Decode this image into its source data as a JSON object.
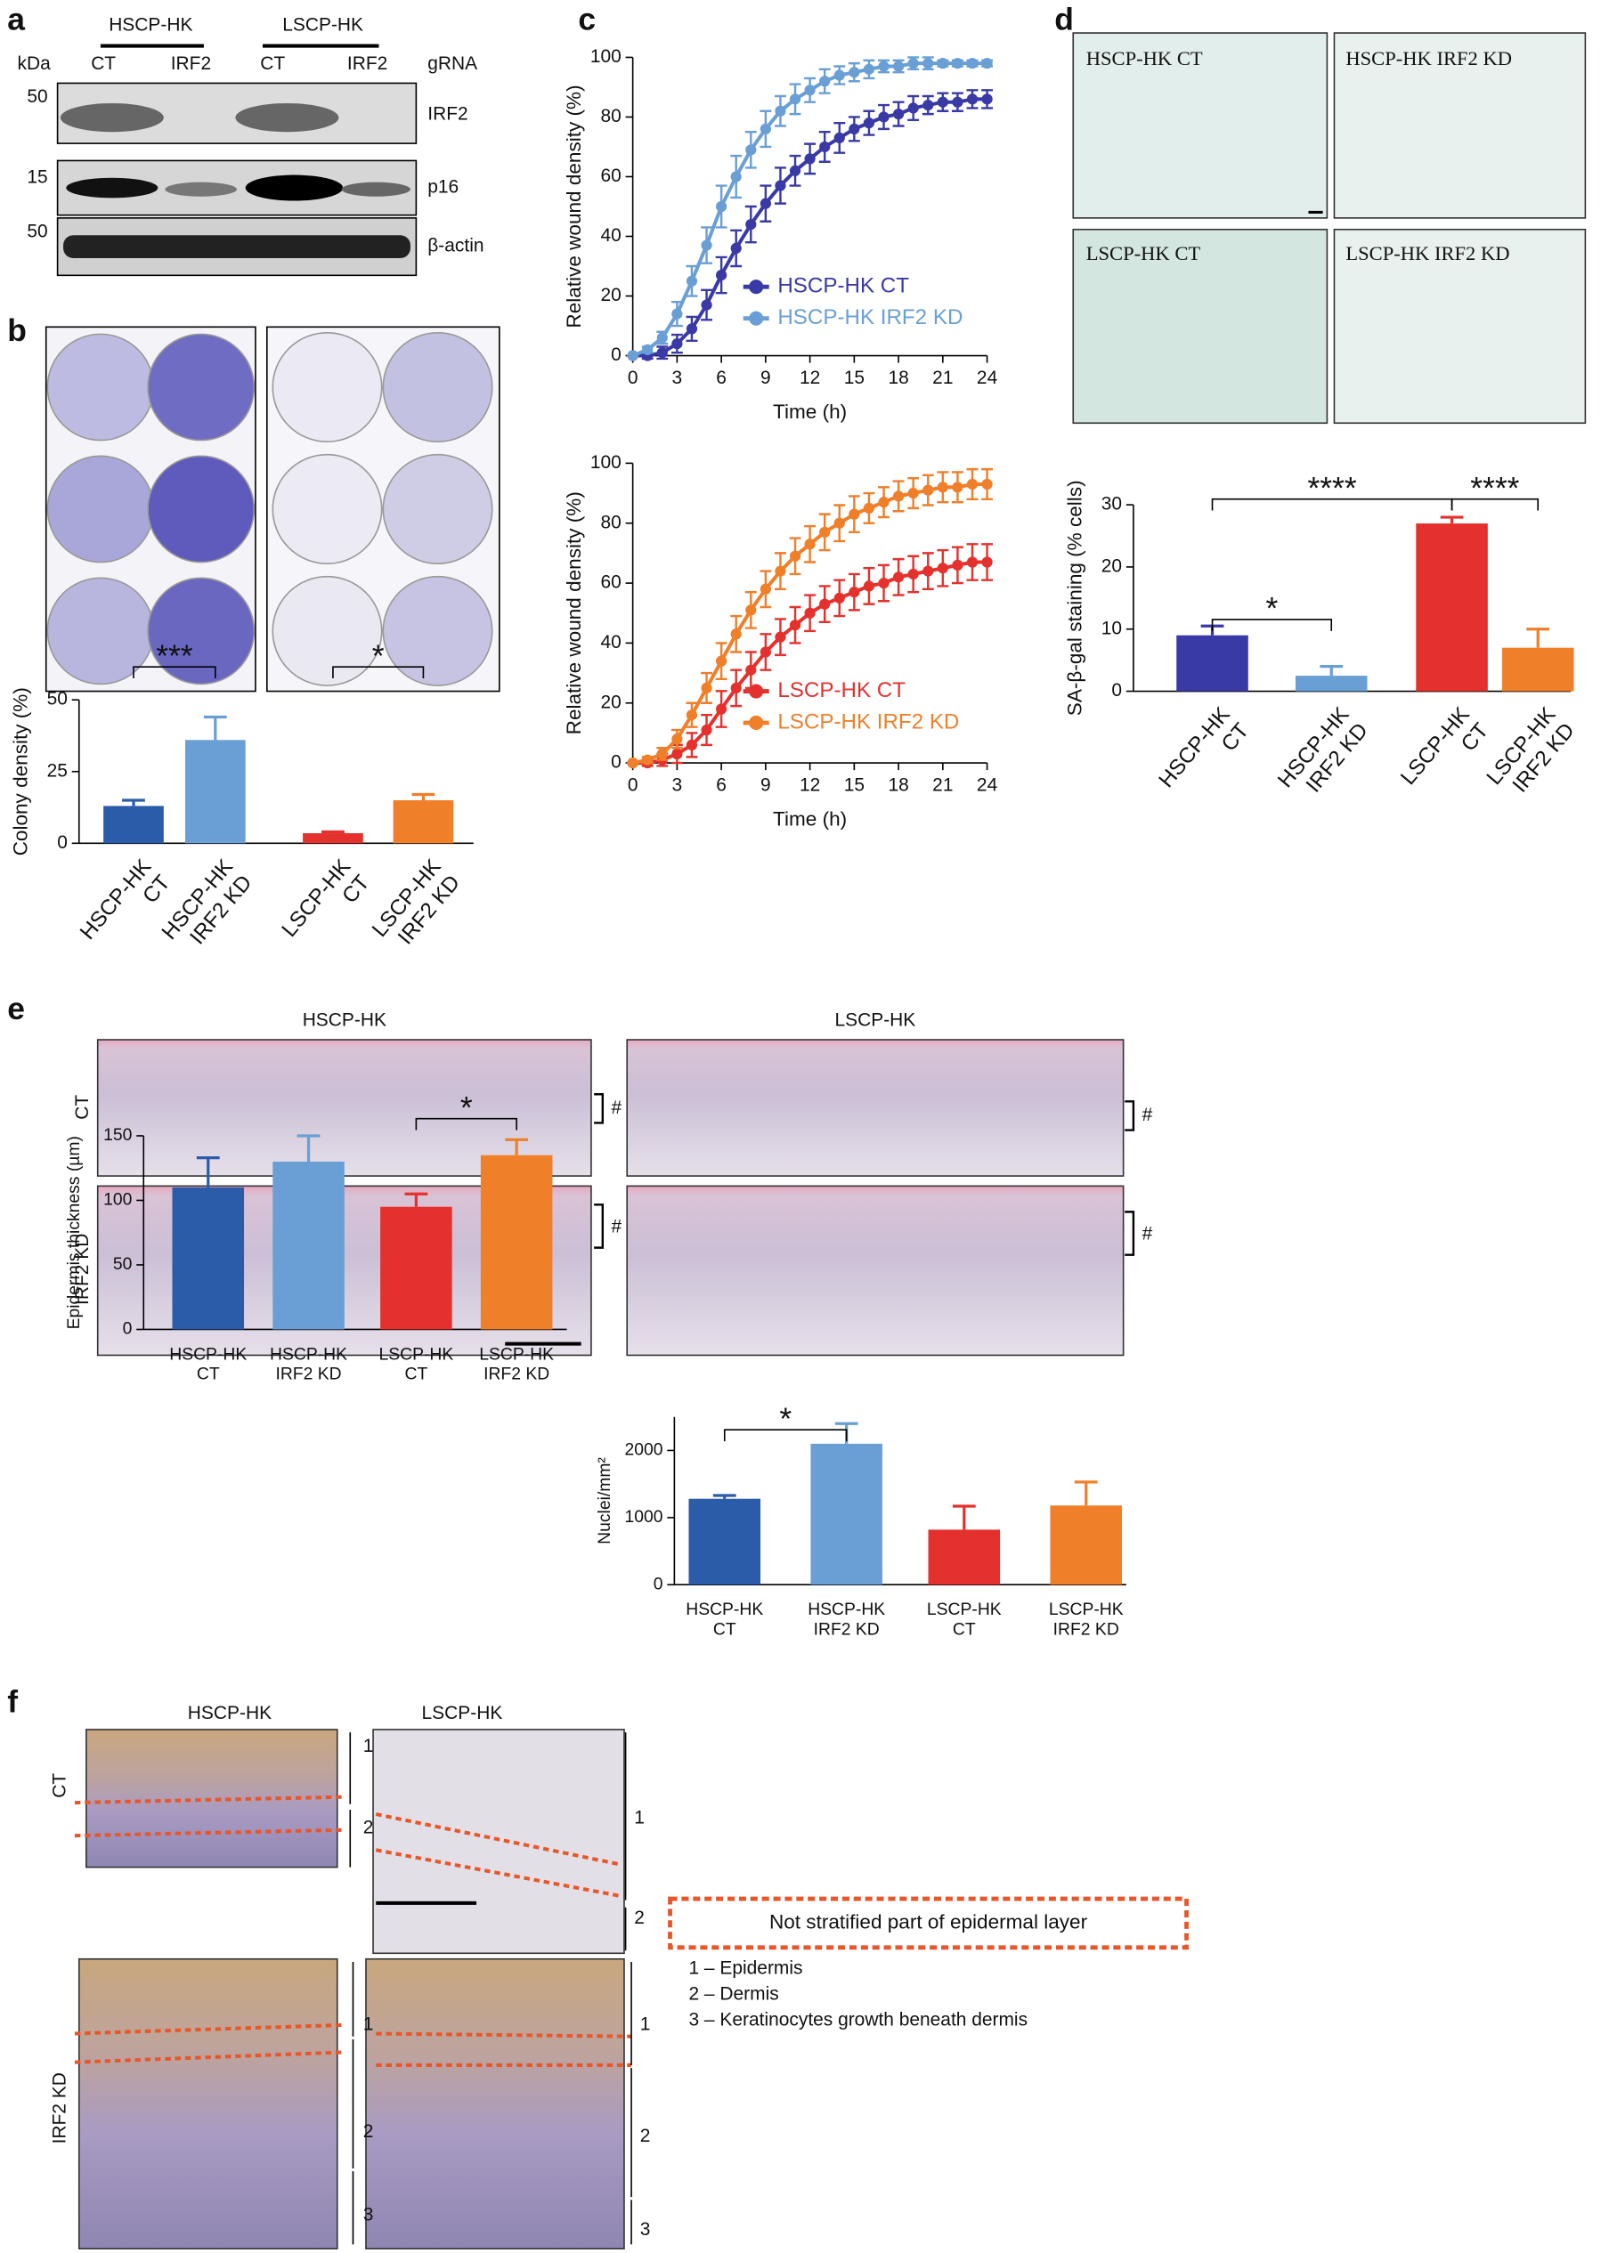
{
  "panel_labels": [
    "a",
    "b",
    "c",
    "d",
    "e",
    "f"
  ],
  "blot": {
    "kda": "kDa",
    "groups": [
      "HSCP-HK",
      "LSCP-HK"
    ],
    "lanes": [
      "CT",
      "IRF2",
      "CT",
      "IRF2"
    ],
    "grna": "gRNA",
    "markers": [
      "50",
      "15",
      "50"
    ],
    "rows": [
      "IRF2",
      "p16",
      "β-actin"
    ]
  },
  "micrographs_d": [
    "HSCP-HK CT",
    "HSCP-HK IRF2 KD",
    "LSCP-HK CT",
    "LSCP-HK IRF2 KD"
  ],
  "histology_e": {
    "columns": [
      "HSCP-HK",
      "LSCP-HK"
    ],
    "rows": [
      "CT",
      "IRF2 KD"
    ],
    "marks": [
      "#",
      "#",
      "#",
      "#"
    ]
  },
  "histology_f": {
    "columns": [
      "HSCP-HK",
      "LSCP-HK"
    ],
    "rows": [
      "CT",
      "IRF2 KD"
    ],
    "layer_numbers": [
      "1",
      "2",
      "1",
      "2",
      "1",
      "2",
      "3",
      "1",
      "2",
      "3"
    ],
    "legend_box": "Not stratified part of epidermal layer",
    "legend": [
      "1 – Epidermis",
      "2 – Dermis",
      "3 – Keratinocytes growth beneath dermis"
    ]
  },
  "chart_data": [
    {
      "type": "bar",
      "categories": [
        "HSCP-HK CT",
        "HSCP-HK IRF2 KD",
        "LSCP-HK CT",
        "LSCP-HK IRF2 KD"
      ],
      "values": [
        13,
        36,
        3.5,
        15
      ],
      "errors": [
        2,
        8,
        0.5,
        2
      ],
      "colors": [
        "#2a5caa",
        "#6a9fd6",
        "#e5312d",
        "#f07f2a"
      ],
      "ylim": [
        0,
        50
      ],
      "yticks": [
        0,
        25,
        50
      ],
      "ylabel": "Colony density (%)",
      "annotations": [
        "***",
        "*"
      ]
    },
    {
      "type": "line",
      "x": [
        0,
        1,
        2,
        3,
        4,
        5,
        6,
        7,
        8,
        9,
        10,
        11,
        12,
        13,
        14,
        15,
        16,
        17,
        18,
        19,
        20,
        21,
        22,
        23,
        24
      ],
      "xlim": [
        0,
        24
      ],
      "xticks": [
        0,
        3,
        6,
        9,
        12,
        15,
        18,
        21,
        24
      ],
      "ylim": [
        0,
        100
      ],
      "yticks": [
        0,
        20,
        40,
        60,
        80,
        100
      ],
      "xlabel": "Time (h)",
      "ylabel": "Relative wound density (%)",
      "series": [
        {
          "name": "HSCP-HK CT",
          "color": "#3a3aa6",
          "values": [
            0,
            0,
            1,
            4,
            9,
            17,
            27,
            36,
            44,
            51,
            57,
            62,
            66,
            70,
            73,
            76,
            78,
            80,
            81,
            83,
            84,
            85,
            85,
            86,
            86
          ],
          "errors": [
            0,
            1,
            2,
            3,
            4,
            5,
            6,
            6,
            6,
            6,
            6,
            5,
            5,
            5,
            5,
            4,
            4,
            4,
            4,
            4,
            3,
            3,
            3,
            3,
            3
          ]
        },
        {
          "name": "HSCP-HK IRF2 KD",
          "color": "#6a9fd6",
          "values": [
            0,
            2,
            6,
            14,
            25,
            37,
            50,
            60,
            69,
            76,
            82,
            86,
            89,
            92,
            94,
            95,
            96,
            97,
            97,
            98,
            98,
            98,
            98,
            98,
            98
          ],
          "errors": [
            0,
            1,
            2,
            4,
            5,
            6,
            7,
            7,
            6,
            6,
            5,
            5,
            4,
            4,
            3,
            3,
            3,
            2,
            2,
            2,
            2,
            1,
            1,
            1,
            1
          ]
        }
      ]
    },
    {
      "type": "line",
      "x": [
        0,
        1,
        2,
        3,
        4,
        5,
        6,
        7,
        8,
        9,
        10,
        11,
        12,
        13,
        14,
        15,
        16,
        17,
        18,
        19,
        20,
        21,
        22,
        23,
        24
      ],
      "xlim": [
        0,
        24
      ],
      "xticks": [
        0,
        3,
        6,
        9,
        12,
        15,
        18,
        21,
        24
      ],
      "ylim": [
        0,
        100
      ],
      "yticks": [
        0,
        20,
        40,
        60,
        80,
        100
      ],
      "xlabel": "Time (h)",
      "ylabel": "Relative wound density (%)",
      "series": [
        {
          "name": "LSCP-HK CT",
          "color": "#e5312d",
          "values": [
            0,
            0,
            1,
            3,
            6,
            11,
            18,
            25,
            31,
            37,
            42,
            46,
            50,
            53,
            55,
            57,
            59,
            60,
            62,
            63,
            64,
            65,
            66,
            67,
            67
          ],
          "errors": [
            0,
            1,
            2,
            3,
            4,
            5,
            6,
            6,
            6,
            6,
            6,
            6,
            6,
            6,
            6,
            6,
            6,
            6,
            6,
            6,
            6,
            6,
            6,
            6,
            6
          ]
        },
        {
          "name": "LSCP-HK IRF2 KD",
          "color": "#f07f2a",
          "values": [
            0,
            1,
            3,
            8,
            16,
            25,
            34,
            43,
            51,
            58,
            64,
            69,
            73,
            77,
            80,
            83,
            85,
            87,
            89,
            90,
            91,
            92,
            92,
            93,
            93
          ],
          "errors": [
            0,
            1,
            2,
            3,
            4,
            5,
            6,
            6,
            6,
            6,
            6,
            6,
            6,
            6,
            6,
            6,
            5,
            5,
            5,
            5,
            5,
            5,
            5,
            5,
            5
          ]
        }
      ]
    },
    {
      "type": "bar",
      "categories": [
        "HSCP-HK CT",
        "HSCP-HK IRF2 KD",
        "LSCP-HK CT",
        "LSCP-HK IRF2 KD"
      ],
      "values": [
        9,
        2.5,
        27,
        7
      ],
      "errors": [
        1.5,
        1.5,
        1,
        3
      ],
      "colors": [
        "#3a3aa6",
        "#6a9fd6",
        "#e5312d",
        "#f07f2a"
      ],
      "ylim": [
        0,
        30
      ],
      "yticks": [
        0,
        10,
        20,
        30
      ],
      "ylabel": "SA-β-gal staining (% cells)",
      "annotations": [
        "****",
        "****",
        "*"
      ]
    },
    {
      "type": "bar",
      "categories": [
        "HSCP-HK CT",
        "HSCP-HK IRF2 KD",
        "LSCP-HK CT",
        "LSCP-HK IRF2 KD"
      ],
      "values": [
        110,
        130,
        95,
        135
      ],
      "errors": [
        23,
        20,
        10,
        12
      ],
      "colors": [
        "#2a5caa",
        "#6a9fd6",
        "#e5312d",
        "#f07f2a"
      ],
      "ylim": [
        0,
        150
      ],
      "yticks": [
        0,
        50,
        100,
        150
      ],
      "ylabel": "Epidermis thickness (µm)",
      "annotations": [
        "*"
      ]
    },
    {
      "type": "bar",
      "categories": [
        "HSCP-HK CT",
        "HSCP-HK IRF2 KD",
        "LSCP-HK CT",
        "LSCP-HK IRF2 KD"
      ],
      "values": [
        1280,
        2100,
        820,
        1180
      ],
      "errors": [
        50,
        300,
        350,
        350
      ],
      "colors": [
        "#2a5caa",
        "#6a9fd6",
        "#e5312d",
        "#f07f2a"
      ],
      "ylim": [
        0,
        2500
      ],
      "yticks": [
        0,
        1000,
        2000
      ],
      "ylabel": "Nuclei/mm²",
      "annotations": [
        "*"
      ]
    }
  ]
}
